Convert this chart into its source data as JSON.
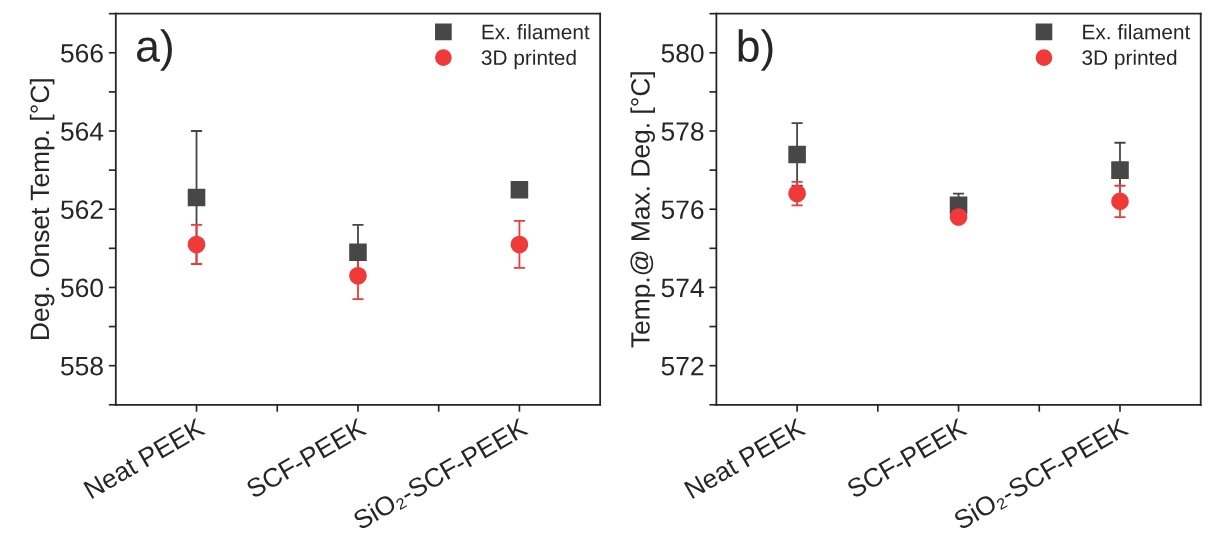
{
  "chart_data": [
    {
      "type": "scatter",
      "title": "a)",
      "ylabel": "Deg. Onset Temp. [°C]",
      "categories": [
        "Neat PEEK",
        "SCF-PEEK",
        "SiO₂-SCF-PEEK"
      ],
      "ylim": [
        557,
        567
      ],
      "yticks": [
        {
          "value": 557,
          "label": null
        },
        558,
        {
          "value": 559,
          "label": null
        },
        560,
        {
          "value": 561,
          "label": null
        },
        562,
        {
          "value": 563,
          "label": null
        },
        564,
        {
          "value": 565,
          "label": null
        },
        566,
        {
          "value": 567,
          "label": null
        }
      ],
      "legend": "top right",
      "grid": false,
      "series": [
        {
          "name": "Ex. filament",
          "color": "#474747",
          "marker": "square",
          "values": [
            562.3,
            560.9,
            562.5
          ],
          "errors": [
            1.7,
            0.7,
            0.1
          ]
        },
        {
          "name": "3D printed",
          "color": "#f03a3a",
          "marker": "circle",
          "values": [
            561.1,
            560.3,
            561.1
          ],
          "errors": [
            0.5,
            0.6,
            0.6
          ]
        }
      ]
    },
    {
      "type": "scatter",
      "title": "b)",
      "ylabel": "Temp.@ Max. Deg. [°C]",
      "categories": [
        "Neat PEEK",
        "SCF-PEEK",
        "SiO₂-SCF-PEEK"
      ],
      "ylim": [
        571,
        581
      ],
      "yticks": [
        {
          "value": 571,
          "label": null
        },
        572,
        {
          "value": 573,
          "label": null
        },
        574,
        {
          "value": 575,
          "label": null
        },
        576,
        {
          "value": 577,
          "label": null
        },
        578,
        {
          "value": 579,
          "label": null
        },
        580,
        {
          "value": 581,
          "label": null
        }
      ],
      "legend": "top right",
      "grid": false,
      "series": [
        {
          "name": "Ex. filament",
          "color": "#474747",
          "marker": "square",
          "values": [
            577.4,
            576.1,
            577.0
          ],
          "errors": [
            0.8,
            0.3,
            0.7
          ]
        },
        {
          "name": "3D printed",
          "color": "#f03a3a",
          "marker": "circle",
          "values": [
            576.4,
            575.8,
            576.2
          ],
          "errors": [
            0.3,
            0.1,
            0.4
          ]
        }
      ]
    }
  ]
}
